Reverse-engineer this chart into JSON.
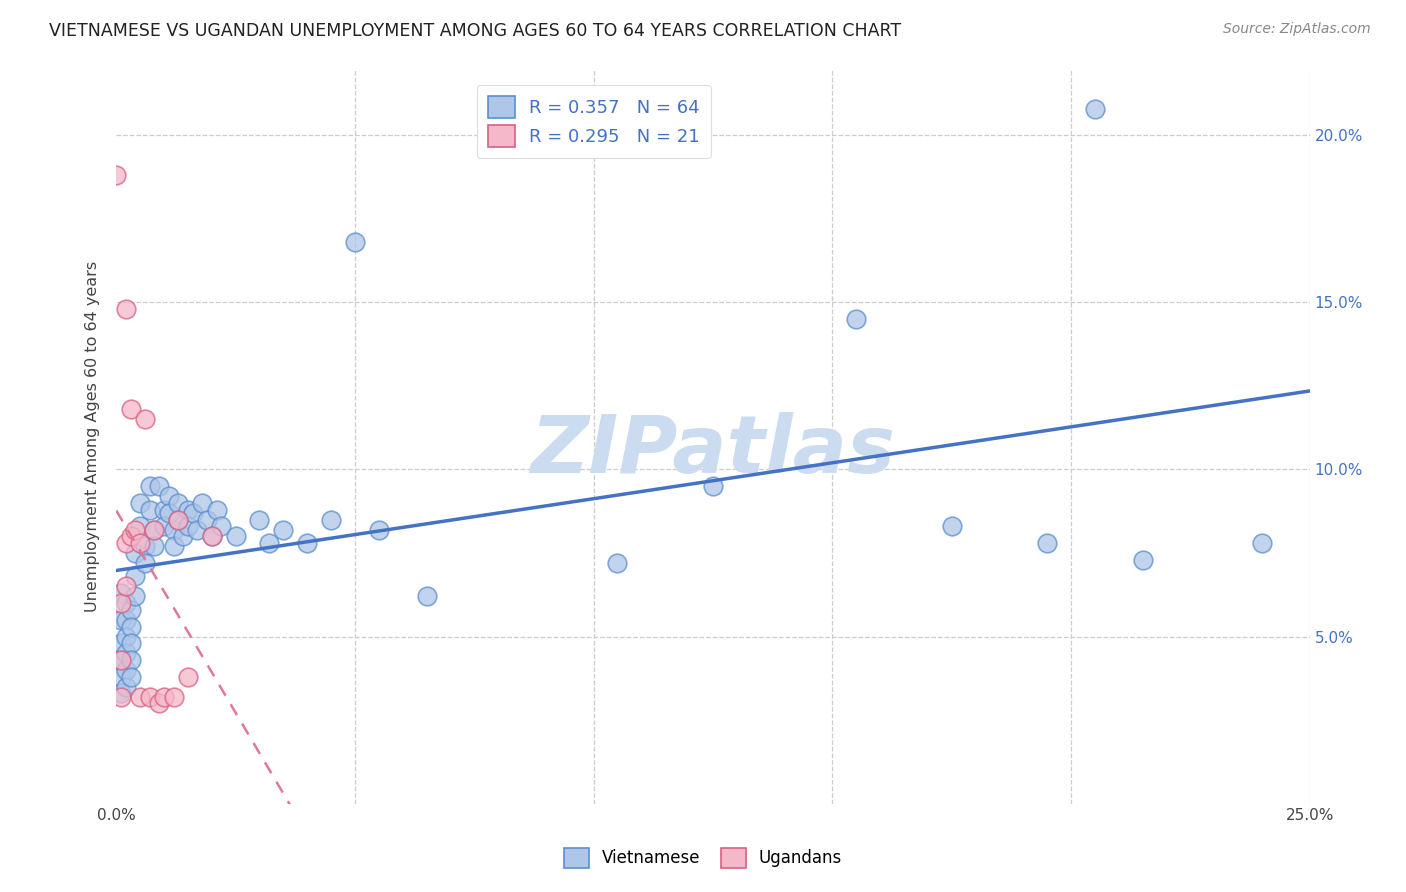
{
  "title": "VIETNAMESE VS UGANDAN UNEMPLOYMENT AMONG AGES 60 TO 64 YEARS CORRELATION CHART",
  "source": "Source: ZipAtlas.com",
  "ylabel": "Unemployment Among Ages 60 to 64 years",
  "xlim": [
    0.0,
    0.25
  ],
  "ylim": [
    0.0,
    0.22
  ],
  "xticks": [
    0.0,
    0.05,
    0.1,
    0.15,
    0.2,
    0.25
  ],
  "xticklabels": [
    "0.0%",
    "",
    "",
    "",
    "",
    "25.0%"
  ],
  "yticks": [
    0.05,
    0.1,
    0.15,
    0.2
  ],
  "yticklabels": [
    "5.0%",
    "10.0%",
    "15.0%",
    "20.0%"
  ],
  "vietnamese_color": "#aec6e8",
  "vietnamese_edge": "#5b8fcf",
  "ugandan_color": "#f5b8ca",
  "ugandan_edge": "#d96080",
  "line_viet_color": "#4472c4",
  "line_ugandan_color": "#e07898",
  "r_vietnamese": 0.357,
  "n_vietnamese": 64,
  "r_ugandan": 0.295,
  "n_ugandan": 21,
  "watermark": "ZIPatlas",
  "watermark_color": "#ccdcf0",
  "viet_pts": [
    [
      0.001,
      0.063
    ],
    [
      0.001,
      0.055
    ],
    [
      0.001,
      0.048
    ],
    [
      0.001,
      0.043
    ],
    [
      0.001,
      0.038
    ],
    [
      0.001,
      0.033
    ],
    [
      0.002,
      0.06
    ],
    [
      0.002,
      0.055
    ],
    [
      0.002,
      0.05
    ],
    [
      0.002,
      0.045
    ],
    [
      0.002,
      0.04
    ],
    [
      0.002,
      0.035
    ],
    [
      0.003,
      0.058
    ],
    [
      0.003,
      0.053
    ],
    [
      0.003,
      0.048
    ],
    [
      0.003,
      0.043
    ],
    [
      0.003,
      0.038
    ],
    [
      0.004,
      0.075
    ],
    [
      0.004,
      0.068
    ],
    [
      0.004,
      0.062
    ],
    [
      0.005,
      0.09
    ],
    [
      0.005,
      0.083
    ],
    [
      0.006,
      0.077
    ],
    [
      0.006,
      0.072
    ],
    [
      0.007,
      0.095
    ],
    [
      0.007,
      0.088
    ],
    [
      0.008,
      0.082
    ],
    [
      0.008,
      0.077
    ],
    [
      0.009,
      0.095
    ],
    [
      0.01,
      0.088
    ],
    [
      0.01,
      0.083
    ],
    [
      0.011,
      0.092
    ],
    [
      0.011,
      0.087
    ],
    [
      0.012,
      0.082
    ],
    [
      0.012,
      0.077
    ],
    [
      0.013,
      0.09
    ],
    [
      0.013,
      0.085
    ],
    [
      0.014,
      0.08
    ],
    [
      0.015,
      0.088
    ],
    [
      0.015,
      0.083
    ],
    [
      0.016,
      0.087
    ],
    [
      0.017,
      0.082
    ],
    [
      0.018,
      0.09
    ],
    [
      0.019,
      0.085
    ],
    [
      0.02,
      0.08
    ],
    [
      0.021,
      0.088
    ],
    [
      0.022,
      0.083
    ],
    [
      0.025,
      0.08
    ],
    [
      0.03,
      0.085
    ],
    [
      0.032,
      0.078
    ],
    [
      0.035,
      0.082
    ],
    [
      0.04,
      0.078
    ],
    [
      0.045,
      0.085
    ],
    [
      0.05,
      0.168
    ],
    [
      0.055,
      0.082
    ],
    [
      0.065,
      0.062
    ],
    [
      0.105,
      0.072
    ],
    [
      0.125,
      0.095
    ],
    [
      0.155,
      0.145
    ],
    [
      0.175,
      0.083
    ],
    [
      0.195,
      0.078
    ],
    [
      0.205,
      0.208
    ],
    [
      0.215,
      0.073
    ],
    [
      0.24,
      0.078
    ]
  ],
  "uganda_pts": [
    [
      0.0,
      0.188
    ],
    [
      0.001,
      0.06
    ],
    [
      0.001,
      0.043
    ],
    [
      0.001,
      0.032
    ],
    [
      0.002,
      0.148
    ],
    [
      0.002,
      0.078
    ],
    [
      0.002,
      0.065
    ],
    [
      0.003,
      0.118
    ],
    [
      0.003,
      0.08
    ],
    [
      0.004,
      0.082
    ],
    [
      0.005,
      0.078
    ],
    [
      0.005,
      0.032
    ],
    [
      0.006,
      0.115
    ],
    [
      0.007,
      0.032
    ],
    [
      0.008,
      0.082
    ],
    [
      0.009,
      0.03
    ],
    [
      0.01,
      0.032
    ],
    [
      0.012,
      0.032
    ],
    [
      0.013,
      0.085
    ],
    [
      0.015,
      0.038
    ],
    [
      0.02,
      0.08
    ]
  ]
}
